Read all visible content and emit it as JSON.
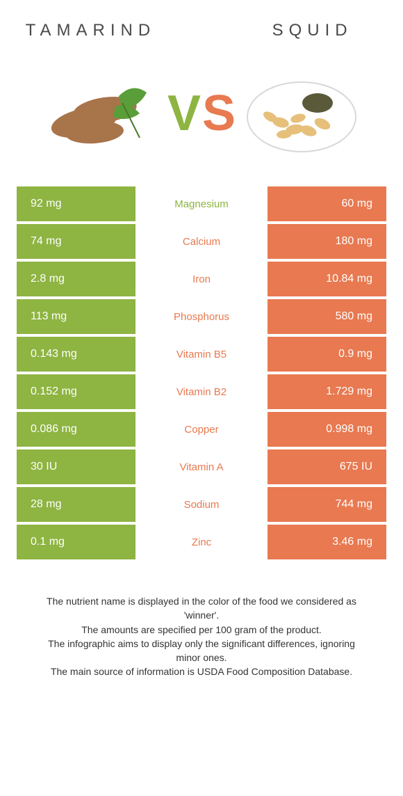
{
  "titles": {
    "left": "Tamarind",
    "right": "Squid"
  },
  "vs": {
    "v": "V",
    "s": "S"
  },
  "colors": {
    "green": "#8eb442",
    "orange": "#e87950",
    "v_color": "#8eb442",
    "s_color": "#e87950"
  },
  "rows": [
    {
      "left": "92 mg",
      "name": "Magnesium",
      "name_color": "#8eb442",
      "right": "60 mg"
    },
    {
      "left": "74 mg",
      "name": "Calcium",
      "name_color": "#e87950",
      "right": "180 mg"
    },
    {
      "left": "2.8 mg",
      "name": "Iron",
      "name_color": "#e87950",
      "right": "10.84 mg"
    },
    {
      "left": "113 mg",
      "name": "Phosphorus",
      "name_color": "#e87950",
      "right": "580 mg"
    },
    {
      "left": "0.143 mg",
      "name": "Vitamin B5",
      "name_color": "#e87950",
      "right": "0.9 mg"
    },
    {
      "left": "0.152 mg",
      "name": "Vitamin B2",
      "name_color": "#e87950",
      "right": "1.729 mg"
    },
    {
      "left": "0.086 mg",
      "name": "Copper",
      "name_color": "#e87950",
      "right": "0.998 mg"
    },
    {
      "left": "30 IU",
      "name": "Vitamin A",
      "name_color": "#e87950",
      "right": "675 IU"
    },
    {
      "left": "28 mg",
      "name": "Sodium",
      "name_color": "#e87950",
      "right": "744 mg"
    },
    {
      "left": "0.1 mg",
      "name": "Zinc",
      "name_color": "#e87950",
      "right": "3.46 mg"
    }
  ],
  "footer": {
    "line1": "The nutrient name is displayed in the color of the food we considered as 'winner'.",
    "line2": "The amounts are specified per 100 gram of the product.",
    "line3": "The infographic aims to display only the significant differences, ignoring minor ones.",
    "line4": "The main source of information is USDA Food Composition Database."
  },
  "table_style": {
    "left_bg": "#8eb442",
    "right_bg": "#e87950",
    "row_gap": 4,
    "cell_text_color": "#ffffff",
    "name_fontsize": 15,
    "value_fontsize": 16
  }
}
